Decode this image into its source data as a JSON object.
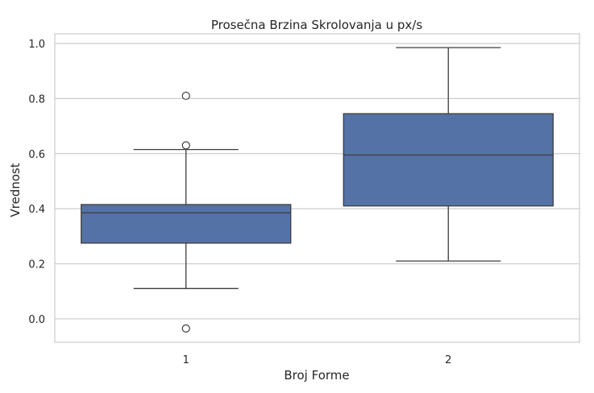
{
  "chart_data": {
    "type": "box",
    "title": "Prosečna Brzina Skrolovanja u px/s",
    "xlabel": "Broj Forme",
    "ylabel": "Vrednost",
    "categories": [
      "1",
      "2"
    ],
    "ylim": [
      -0.085,
      1.035
    ],
    "yticks": [
      "0.0",
      "0.2",
      "0.4",
      "0.6",
      "0.8",
      "1.0"
    ],
    "grid": true,
    "box_color": "#5572a6",
    "line_color": "#3d3d3d",
    "boxes": [
      {
        "category": "1",
        "whisker_low": 0.11,
        "q1": 0.275,
        "median": 0.385,
        "q3": 0.415,
        "whisker_high": 0.615,
        "outliers": [
          0.81,
          0.63,
          -0.035
        ]
      },
      {
        "category": "2",
        "whisker_low": 0.21,
        "q1": 0.41,
        "median": 0.595,
        "q3": 0.745,
        "whisker_high": 0.985,
        "outliers": []
      }
    ]
  }
}
